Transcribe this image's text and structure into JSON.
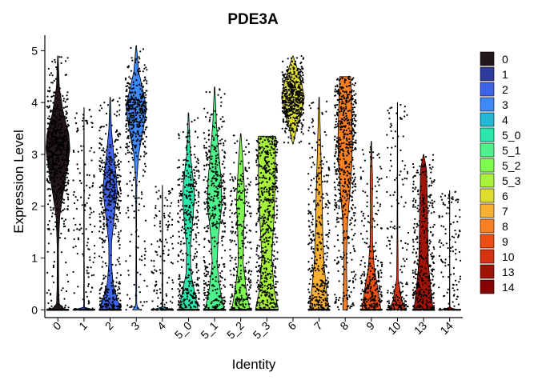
{
  "chart_data": {
    "type": "violin",
    "title": "PDE3A",
    "xlabel": "Identity",
    "ylabel": "Expression Level",
    "ylim": [
      -0.15,
      5.3
    ],
    "yticks": [
      0,
      1,
      2,
      3,
      4,
      5
    ],
    "grid": false,
    "legend_position": "right",
    "points_overlaid": true,
    "categories": [
      "0",
      "1",
      "2",
      "3",
      "4",
      "5_0",
      "5_1",
      "5_2",
      "5_3",
      "6",
      "7",
      "8",
      "9",
      "10",
      "13",
      "14"
    ],
    "colors": [
      "#23171b",
      "#2d3b9a",
      "#3e62e8",
      "#3e88f7",
      "#25b7d6",
      "#2ae8ad",
      "#4ef28a",
      "#7efb4e",
      "#a8f23b",
      "#dedc30",
      "#f7b030",
      "#fa7f23",
      "#ea4e15",
      "#d43210",
      "#a11306",
      "#870404"
    ],
    "series": [
      {
        "name": "0",
        "max": 4.9,
        "profile": [
          [
            0,
            0.7
          ],
          [
            0.08,
            0.12
          ],
          [
            0.4,
            0.07
          ],
          [
            1.2,
            0.05
          ],
          [
            1.8,
            0.15
          ],
          [
            2.2,
            0.4
          ],
          [
            2.7,
            0.75
          ],
          [
            3.1,
            1.0
          ],
          [
            3.4,
            0.9
          ],
          [
            3.8,
            0.45
          ],
          [
            4.3,
            0.12
          ],
          [
            4.9,
            0.02
          ]
        ]
      },
      {
        "name": "1",
        "max": 3.9,
        "profile": [
          [
            0,
            0.85
          ],
          [
            0.05,
            0.03
          ],
          [
            1.0,
            0.02
          ],
          [
            2.0,
            0.02
          ],
          [
            3.9,
            0.01
          ]
        ]
      },
      {
        "name": "2",
        "max": 4.1,
        "profile": [
          [
            0,
            0.9
          ],
          [
            0.2,
            0.6
          ],
          [
            0.5,
            0.25
          ],
          [
            0.9,
            0.1
          ],
          [
            1.3,
            0.12
          ],
          [
            1.8,
            0.35
          ],
          [
            2.3,
            0.6
          ],
          [
            2.6,
            0.5
          ],
          [
            3.0,
            0.3
          ],
          [
            3.5,
            0.1
          ],
          [
            4.1,
            0.02
          ]
        ]
      },
      {
        "name": "3",
        "max": 5.1,
        "profile": [
          [
            0,
            0.3
          ],
          [
            0.08,
            0.04
          ],
          [
            1.5,
            0.02
          ],
          [
            2.5,
            0.05
          ],
          [
            3.0,
            0.2
          ],
          [
            3.5,
            0.6
          ],
          [
            3.9,
            0.85
          ],
          [
            4.2,
            0.6
          ],
          [
            4.6,
            0.2
          ],
          [
            5.1,
            0.02
          ]
        ]
      },
      {
        "name": "4",
        "max": 2.4,
        "profile": [
          [
            0,
            0.85
          ],
          [
            0.05,
            0.03
          ],
          [
            1.0,
            0.02
          ],
          [
            2.4,
            0.01
          ]
        ]
      },
      {
        "name": "5_0",
        "max": 3.8,
        "profile": [
          [
            0,
            0.8
          ],
          [
            0.3,
            0.55
          ],
          [
            0.7,
            0.2
          ],
          [
            1.2,
            0.15
          ],
          [
            1.7,
            0.35
          ],
          [
            2.2,
            0.5
          ],
          [
            2.6,
            0.35
          ],
          [
            3.0,
            0.15
          ],
          [
            3.8,
            0.02
          ]
        ]
      },
      {
        "name": "5_1",
        "max": 4.3,
        "profile": [
          [
            0,
            0.8
          ],
          [
            0.4,
            0.45
          ],
          [
            0.9,
            0.2
          ],
          [
            1.4,
            0.3
          ],
          [
            2.0,
            0.6
          ],
          [
            2.5,
            0.55
          ],
          [
            3.0,
            0.35
          ],
          [
            3.6,
            0.15
          ],
          [
            4.3,
            0.02
          ]
        ]
      },
      {
        "name": "5_2",
        "max": 3.4,
        "profile": [
          [
            0,
            0.75
          ],
          [
            0.4,
            0.45
          ],
          [
            0.9,
            0.2
          ],
          [
            1.5,
            0.25
          ],
          [
            2.1,
            0.35
          ],
          [
            2.8,
            0.2
          ],
          [
            3.4,
            0.02
          ]
        ]
      },
      {
        "name": "5_3",
        "max": 3.35,
        "profile": [
          [
            0,
            0.95
          ],
          [
            0.4,
            0.6
          ],
          [
            1.0,
            0.4
          ],
          [
            1.8,
            0.6
          ],
          [
            2.5,
            0.7
          ],
          [
            3.0,
            0.7
          ],
          [
            3.35,
            0.7
          ]
        ]
      },
      {
        "name": "6",
        "max": 4.9,
        "profile": [
          [
            3.2,
            0.02
          ],
          [
            3.5,
            0.3
          ],
          [
            3.8,
            0.7
          ],
          [
            4.1,
            0.95
          ],
          [
            4.4,
            0.7
          ],
          [
            4.7,
            0.3
          ],
          [
            4.9,
            0.02
          ]
        ]
      },
      {
        "name": "7",
        "max": 4.1,
        "profile": [
          [
            0,
            0.8
          ],
          [
            0.4,
            0.6
          ],
          [
            0.9,
            0.4
          ],
          [
            1.5,
            0.3
          ],
          [
            2.2,
            0.25
          ],
          [
            3.0,
            0.15
          ],
          [
            4.1,
            0.02
          ]
        ]
      },
      {
        "name": "8",
        "max": 4.5,
        "profile": [
          [
            0,
            0.2
          ],
          [
            0.3,
            0.15
          ],
          [
            1.0,
            0.1
          ],
          [
            1.7,
            0.2
          ],
          [
            2.3,
            0.4
          ],
          [
            2.8,
            0.55
          ],
          [
            3.3,
            0.6
          ],
          [
            3.8,
            0.55
          ],
          [
            4.2,
            0.5
          ],
          [
            4.5,
            0.45
          ]
        ]
      },
      {
        "name": "9",
        "max": 3.25,
        "profile": [
          [
            0,
            0.8
          ],
          [
            0.4,
            0.55
          ],
          [
            0.8,
            0.25
          ],
          [
            1.3,
            0.1
          ],
          [
            2.0,
            0.08
          ],
          [
            2.5,
            0.1
          ],
          [
            3.25,
            0.02
          ]
        ]
      },
      {
        "name": "10",
        "max": 4.0,
        "profile": [
          [
            0,
            0.65
          ],
          [
            0.2,
            0.35
          ],
          [
            0.6,
            0.06
          ],
          [
            1.5,
            0.03
          ],
          [
            2.5,
            0.02
          ],
          [
            4.0,
            0.01
          ]
        ]
      },
      {
        "name": "13",
        "max": 3.0,
        "profile": [
          [
            0,
            0.8
          ],
          [
            0.4,
            0.6
          ],
          [
            0.9,
            0.4
          ],
          [
            1.5,
            0.35
          ],
          [
            2.2,
            0.3
          ],
          [
            2.7,
            0.25
          ],
          [
            3.0,
            0.02
          ]
        ]
      },
      {
        "name": "14",
        "max": 2.3,
        "profile": [
          [
            0,
            0.7
          ],
          [
            0.04,
            0.02
          ],
          [
            1.0,
            0.01
          ],
          [
            2.3,
            0.01
          ]
        ]
      }
    ]
  }
}
